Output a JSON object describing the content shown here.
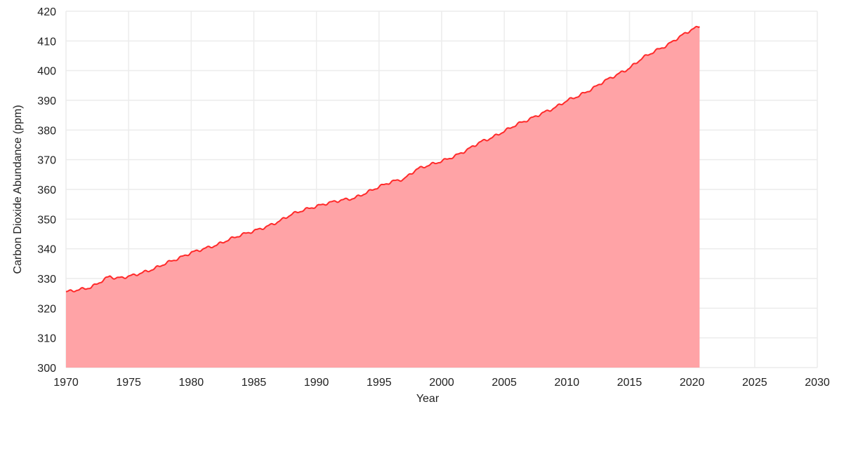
{
  "chart_data": {
    "type": "area",
    "title": "",
    "xlabel": "Year",
    "ylabel": "Carbon Dioxide Abundance (ppm)",
    "xlim": [
      1970,
      2030
    ],
    "ylim": [
      300,
      420
    ],
    "x_ticks": [
      1970,
      1975,
      1980,
      1985,
      1990,
      1995,
      2000,
      2005,
      2010,
      2015,
      2020,
      2025,
      2030
    ],
    "y_ticks": [
      300,
      310,
      320,
      330,
      340,
      350,
      360,
      370,
      380,
      390,
      400,
      410,
      420
    ],
    "grid": true,
    "legend": "none",
    "line_color": "#ff2a2a",
    "fill_color": "#ffa3a6",
    "series": [
      {
        "x": [
          1970,
          1971,
          1972,
          1973,
          1973.5,
          1974,
          1975,
          1976,
          1977,
          1978,
          1979,
          1980,
          1981,
          1982,
          1983,
          1984,
          1985,
          1986,
          1987,
          1988,
          1989,
          1990,
          1991,
          1992,
          1993,
          1994,
          1995,
          1996,
          1997,
          1998,
          1999,
          2000,
          2001,
          2002,
          2003,
          2004,
          2005,
          2006,
          2007,
          2008,
          2009,
          2010,
          2011,
          2012,
          2013,
          2014,
          2015,
          2016,
          2017,
          2018,
          2019,
          2020,
          2020.6
        ],
        "y": [
          325.5,
          326.2,
          327.0,
          329.5,
          330.8,
          330.0,
          330.7,
          331.8,
          333.2,
          335.2,
          336.8,
          338.7,
          340.0,
          341.2,
          343.1,
          344.7,
          346.0,
          347.4,
          349.2,
          351.6,
          353.1,
          354.3,
          355.5,
          356.4,
          357.0,
          358.9,
          360.9,
          362.6,
          363.5,
          366.8,
          368.2,
          369.5,
          371.1,
          373.2,
          375.8,
          377.4,
          379.6,
          381.9,
          383.6,
          385.6,
          387.4,
          389.9,
          391.6,
          393.8,
          396.5,
          398.6,
          400.8,
          404.2,
          406.5,
          408.5,
          411.4,
          413.9,
          414.8
        ]
      }
    ]
  }
}
